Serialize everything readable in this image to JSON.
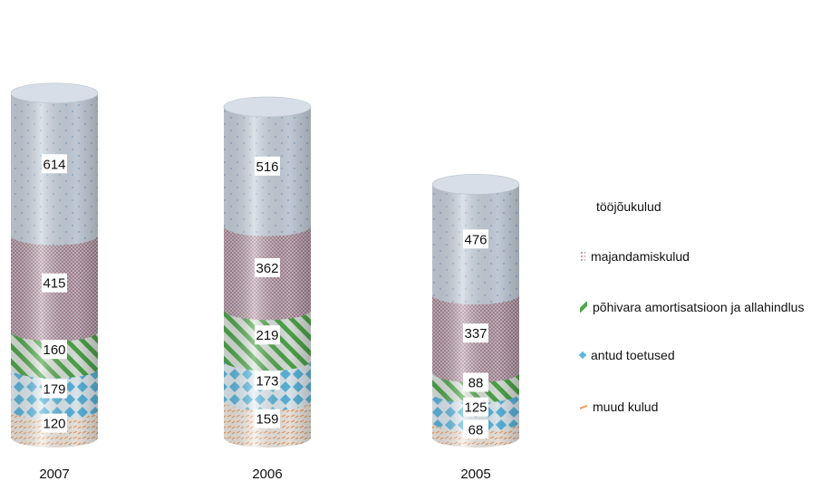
{
  "chart_data": {
    "type": "bar",
    "stacked": true,
    "style": "3d-cylinder",
    "categories": [
      "2007",
      "2006",
      "2005"
    ],
    "series": [
      {
        "name": "muud kulud",
        "values": [
          120,
          159,
          68
        ],
        "color": "#f0a268",
        "pattern": "dashes"
      },
      {
        "name": "antud toetused",
        "values": [
          179,
          173,
          125
        ],
        "color": "#5bb8e0",
        "pattern": "diamonds"
      },
      {
        "name": "põhivara amortisatsioon ja allahindlus",
        "values": [
          160,
          219,
          88
        ],
        "color": "#4ea84a",
        "pattern": "stripes"
      },
      {
        "name": "majandamiskulud",
        "values": [
          415,
          362,
          337
        ],
        "color": "#b07a8c",
        "pattern": "dots"
      },
      {
        "name": "tööjõukulud",
        "values": [
          614,
          516,
          476
        ],
        "color": "#c6d0dc",
        "pattern": "sparse-dots"
      }
    ],
    "legend_position": "right",
    "grid": false
  }
}
